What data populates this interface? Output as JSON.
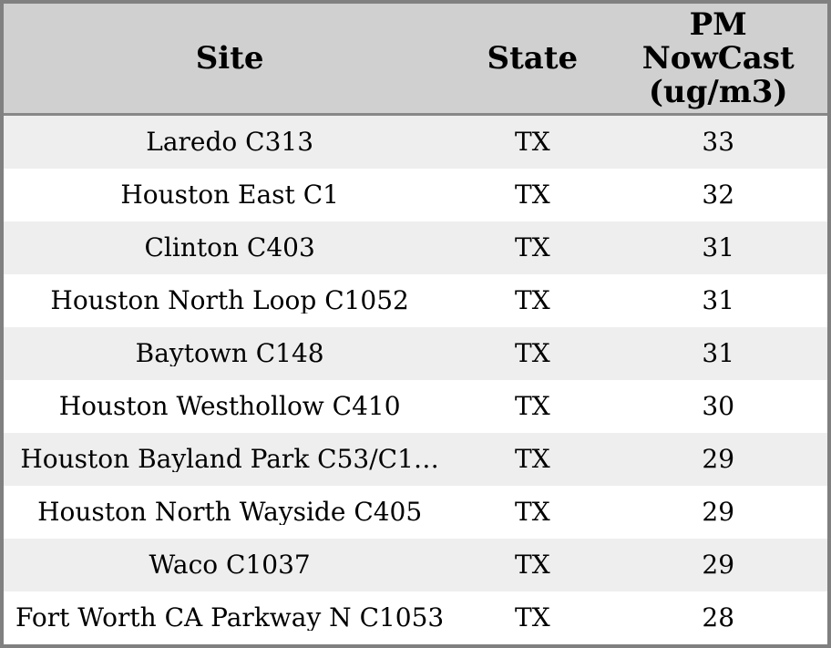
{
  "chart_data": {
    "type": "table",
    "columns": [
      "Site",
      "State",
      "PM NowCast (ug/m3)"
    ],
    "rows": [
      [
        "Laredo C313",
        "TX",
        33
      ],
      [
        "Houston East C1",
        "TX",
        32
      ],
      [
        "Clinton C403",
        "TX",
        31
      ],
      [
        "Houston North Loop C1052",
        "TX",
        31
      ],
      [
        "Baytown C148",
        "TX",
        31
      ],
      [
        "Houston Westhollow C410",
        "TX",
        30
      ],
      [
        "Houston Bayland Park C53/C1…",
        "TX",
        29
      ],
      [
        "Houston North Wayside C405",
        "TX",
        29
      ],
      [
        "Waco C1037",
        "TX",
        29
      ],
      [
        "Fort Worth CA Parkway N C1053",
        "TX",
        28
      ]
    ]
  },
  "colors": {
    "border": "#808080",
    "header_bg": "#d0d0d0",
    "header_divider": "#878787",
    "row_alt_bg": "#eeeeee",
    "row_bg": "#ffffff",
    "text": "#000000"
  }
}
